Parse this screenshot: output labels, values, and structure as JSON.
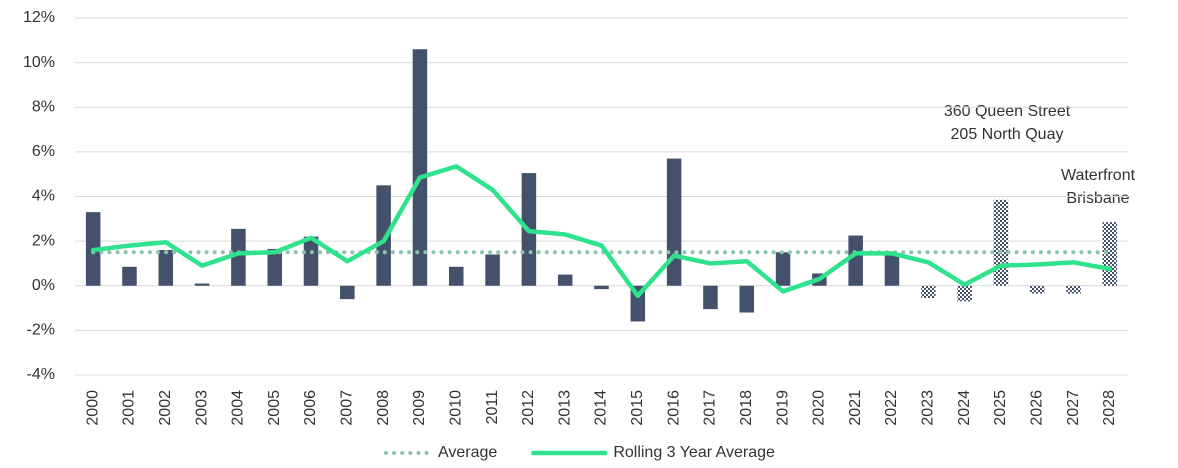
{
  "chart_data": {
    "type": "bar_line",
    "categories": [
      "2000",
      "2001",
      "2002",
      "2003",
      "2004",
      "2005",
      "2006",
      "2007",
      "2008",
      "2009",
      "2010",
      "2011",
      "2012",
      "2013",
      "2014",
      "2015",
      "2016",
      "2017",
      "2018",
      "2019",
      "2020",
      "2021",
      "2022",
      "2023",
      "2024",
      "2025",
      "2026",
      "2027",
      "2028"
    ],
    "bars": {
      "color": "#44516a",
      "values": [
        3.3,
        0.85,
        1.6,
        0.1,
        2.55,
        1.65,
        2.2,
        -0.6,
        4.5,
        10.6,
        0.85,
        1.4,
        5.05,
        0.5,
        -0.15,
        -1.6,
        5.7,
        -1.05,
        -1.2,
        1.5,
        0.55,
        2.25,
        1.45,
        -0.55,
        -0.7,
        3.85,
        -0.35,
        -0.35,
        2.85
      ],
      "fill_styles": [
        "solid",
        "solid",
        "solid",
        "solid",
        "solid",
        "solid",
        "solid",
        "solid",
        "solid",
        "solid",
        "solid",
        "solid",
        "solid",
        "solid",
        "solid",
        "solid",
        "solid",
        "solid",
        "solid",
        "solid",
        "solid",
        "solid",
        "solid",
        "hatched",
        "hatched",
        "hatched",
        "hatched",
        "hatched",
        "hatched"
      ]
    },
    "series": [
      {
        "name": "Average",
        "color": "#8cc4ae",
        "style": "dotted",
        "values": [
          1.5,
          1.5,
          1.5,
          1.5,
          1.5,
          1.5,
          1.5,
          1.5,
          1.5,
          1.5,
          1.5,
          1.5,
          1.5,
          1.5,
          1.5,
          1.5,
          1.5,
          1.5,
          1.5,
          1.5,
          1.5,
          1.5,
          1.5,
          1.5,
          1.5,
          1.5,
          1.5,
          1.5,
          1.5
        ]
      },
      {
        "name": "Rolling 3 Year Average",
        "color": "#2fe38d",
        "style": "solid",
        "values": [
          1.6,
          1.8,
          1.95,
          0.9,
          1.45,
          1.5,
          2.15,
          1.1,
          2.0,
          4.85,
          5.35,
          4.3,
          2.45,
          2.3,
          1.8,
          -0.45,
          1.35,
          1.0,
          1.1,
          -0.25,
          0.3,
          1.45,
          1.45,
          1.05,
          0.05,
          0.9,
          0.95,
          1.05,
          0.75
        ]
      }
    ],
    "annotations": [
      "360 Queen Street",
      "205 North Quay",
      "Waterfront",
      "Brisbane"
    ],
    "ylim": [
      -4,
      12
    ],
    "yticks": [
      {
        "value": -4,
        "label": "-4%"
      },
      {
        "value": -2,
        "label": "-2%"
      },
      {
        "value": 0,
        "label": "0%"
      },
      {
        "value": 2,
        "label": "2%"
      },
      {
        "value": 4,
        "label": "4%"
      },
      {
        "value": 6,
        "label": "6%"
      },
      {
        "value": 8,
        "label": "8%"
      },
      {
        "value": 10,
        "label": "10%"
      },
      {
        "value": 12,
        "label": "12%"
      }
    ],
    "grid": true,
    "legend": "bottom"
  }
}
